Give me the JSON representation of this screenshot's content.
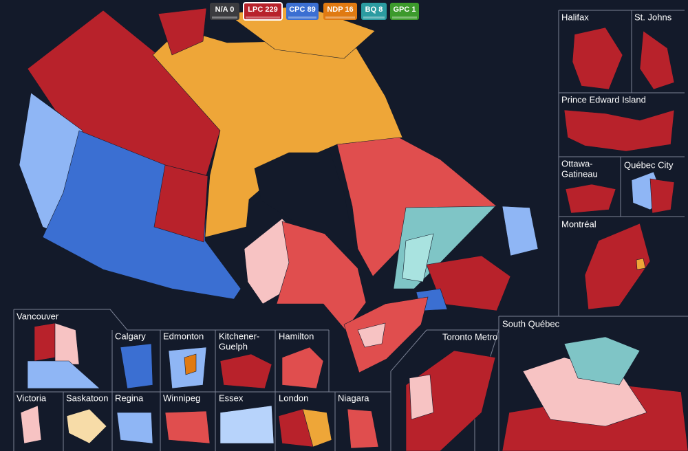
{
  "legend": [
    {
      "party": "N/A",
      "seats": 0,
      "color": "#3b3b3f"
    },
    {
      "party": "LPC",
      "seats": 229,
      "color": "#b8222b",
      "selected": true
    },
    {
      "party": "CPC",
      "seats": 89,
      "color": "#3b6fd2"
    },
    {
      "party": "NDP",
      "seats": 16,
      "color": "#e07a12"
    },
    {
      "party": "BQ",
      "seats": 8,
      "color": "#2b9ba1"
    },
    {
      "party": "GPC",
      "seats": 1,
      "color": "#3c9a2c"
    }
  ],
  "insets": [
    {
      "lines": [
        "Halifax"
      ]
    },
    {
      "lines": [
        "St. Johns"
      ]
    },
    {
      "lines": [
        "Prince Edward Island"
      ]
    },
    {
      "lines": [
        "Ottawa-",
        "Gatineau"
      ]
    },
    {
      "lines": [
        "Québec City"
      ]
    },
    {
      "lines": [
        "Montréal"
      ]
    },
    {
      "lines": [
        "South Québec"
      ]
    },
    {
      "lines": [
        "Toronto Metro"
      ]
    },
    {
      "lines": [
        "Vancouver"
      ]
    },
    {
      "lines": [
        "Calgary"
      ]
    },
    {
      "lines": [
        "Edmonton"
      ]
    },
    {
      "lines": [
        "Kitchener-",
        "Guelph"
      ]
    },
    {
      "lines": [
        "Hamilton"
      ]
    },
    {
      "lines": [
        "Victoria"
      ]
    },
    {
      "lines": [
        "Saskatoon"
      ]
    },
    {
      "lines": [
        "Regina"
      ]
    },
    {
      "lines": [
        "Winnipeg"
      ]
    },
    {
      "lines": [
        "Essex"
      ]
    },
    {
      "lines": [
        "London"
      ]
    },
    {
      "lines": [
        "Niagara"
      ]
    }
  ]
}
